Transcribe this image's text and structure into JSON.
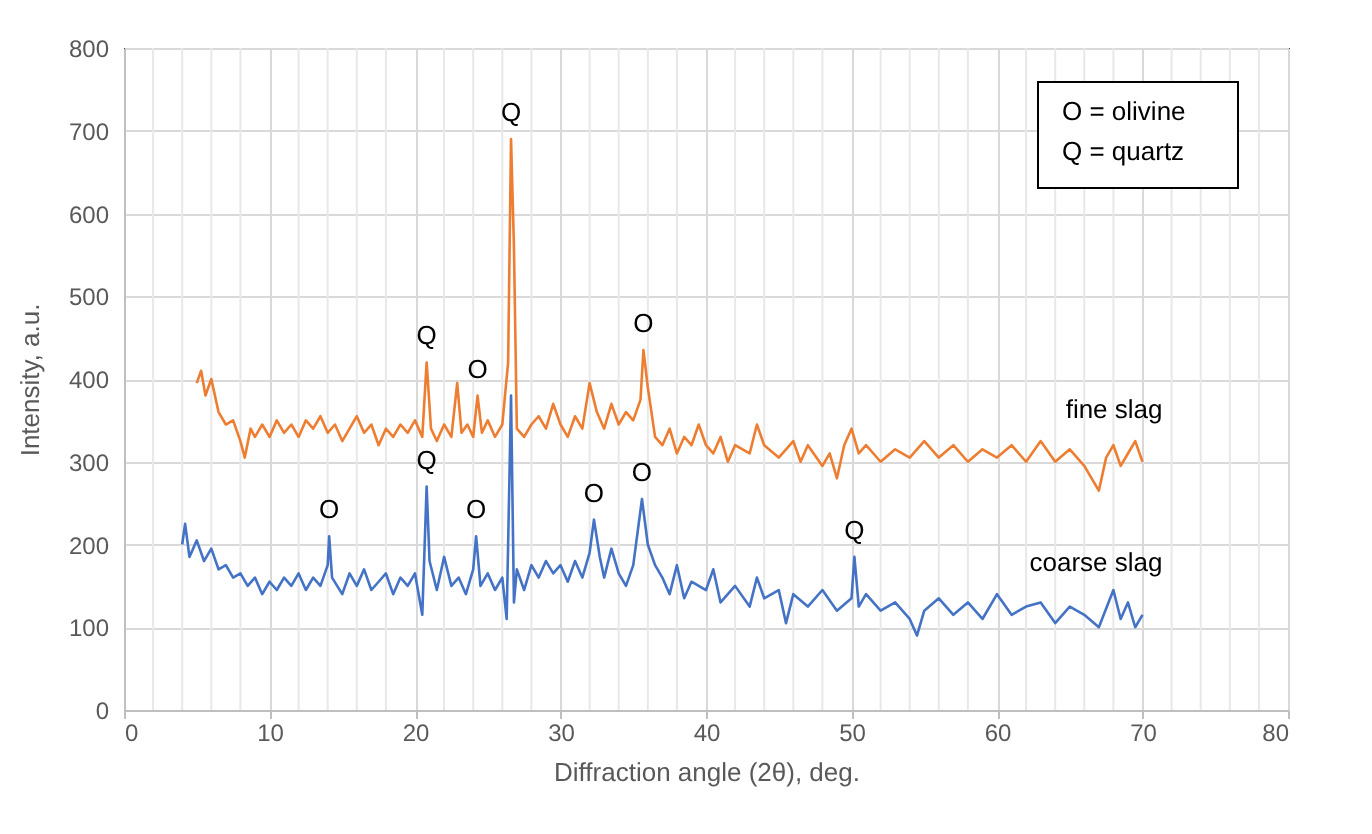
{
  "chart_data": {
    "type": "line",
    "xlabel": "Diffraction angle (2θ), deg.",
    "ylabel": "Intensity, a.u.",
    "xlim": [
      0,
      80
    ],
    "xticks": [
      0,
      10,
      20,
      30,
      40,
      50,
      60,
      70,
      80
    ],
    "ylim": [
      0,
      800
    ],
    "yticks": [
      0,
      100,
      200,
      300,
      400,
      500,
      600,
      700,
      800
    ],
    "grid": true,
    "legend": false,
    "marker": "none",
    "line_style": "solid",
    "annotations": [
      "O = olivine",
      "Q = quartz",
      {
        "text": "Q",
        "x": 20.8,
        "y": 420
      },
      {
        "text": "O",
        "x": 24.3,
        "y": 380
      },
      {
        "text": "Q",
        "x": 26.6,
        "y": 690
      },
      {
        "text": "O",
        "x": 35.7,
        "y": 435
      },
      {
        "text": "O",
        "x": 14.1,
        "y": 210
      },
      {
        "text": "Q",
        "x": 20.8,
        "y": 270
      },
      {
        "text": "O",
        "x": 24.2,
        "y": 210
      },
      {
        "text": "O",
        "x": 32.3,
        "y": 230
      },
      {
        "text": "O",
        "x": 35.6,
        "y": 255
      },
      {
        "text": "Q",
        "x": 50.2,
        "y": 185
      }
    ],
    "series": [
      {
        "name": "fine slag",
        "color": "#ed7d31",
        "x": [
          5,
          5.3,
          5.6,
          6,
          6.5,
          7,
          7.5,
          8,
          8.3,
          8.7,
          9,
          9.5,
          10,
          10.5,
          11,
          11.5,
          12,
          12.5,
          13,
          13.5,
          14,
          14.5,
          15,
          15.5,
          16,
          16.5,
          17,
          17.5,
          18,
          18.5,
          19,
          19.5,
          20,
          20.5,
          20.8,
          21.1,
          21.5,
          22,
          22.5,
          22.9,
          23.2,
          23.6,
          24,
          24.3,
          24.6,
          25,
          25.5,
          26,
          26.4,
          26.6,
          26.8,
          27,
          27.5,
          28,
          28.5,
          29,
          29.5,
          30,
          30.5,
          31,
          31.5,
          32,
          32.5,
          33,
          33.5,
          34,
          34.5,
          35,
          35.5,
          35.7,
          36,
          36.5,
          37,
          37.5,
          38,
          38.5,
          39,
          39.5,
          40,
          40.5,
          41,
          41.5,
          42,
          43,
          43.5,
          44,
          45,
          46,
          46.5,
          47,
          48,
          48.5,
          49,
          49.5,
          50,
          50.5,
          51,
          52,
          53,
          54,
          55,
          56,
          57,
          58,
          59,
          60,
          61,
          62,
          63,
          64,
          65,
          66,
          67,
          67.5,
          68,
          68.5,
          69,
          69.5,
          70
        ],
        "values": [
          395,
          410,
          380,
          400,
          360,
          345,
          350,
          325,
          305,
          340,
          330,
          345,
          330,
          350,
          335,
          345,
          330,
          350,
          340,
          355,
          335,
          345,
          325,
          340,
          355,
          335,
          345,
          320,
          340,
          330,
          345,
          335,
          350,
          330,
          420,
          340,
          325,
          345,
          330,
          395,
          335,
          345,
          330,
          380,
          335,
          350,
          330,
          345,
          420,
          690,
          560,
          340,
          330,
          345,
          355,
          340,
          370,
          345,
          330,
          355,
          340,
          395,
          360,
          340,
          370,
          345,
          360,
          350,
          375,
          435,
          390,
          330,
          320,
          340,
          310,
          330,
          320,
          345,
          320,
          310,
          330,
          300,
          320,
          310,
          345,
          320,
          305,
          325,
          300,
          320,
          295,
          310,
          280,
          320,
          340,
          310,
          320,
          300,
          315,
          305,
          325,
          305,
          320,
          300,
          315,
          305,
          320,
          300,
          325,
          300,
          315,
          295,
          265,
          305,
          320,
          295,
          310,
          325,
          300
        ]
      },
      {
        "name": "coarse slag",
        "color": "#4472c4",
        "x": [
          4,
          4.2,
          4.5,
          5,
          5.5,
          6,
          6.5,
          7,
          7.5,
          8,
          8.5,
          9,
          9.5,
          10,
          10.5,
          11,
          11.5,
          12,
          12.5,
          13,
          13.5,
          14,
          14.1,
          14.3,
          15,
          15.5,
          16,
          16.5,
          17,
          17.5,
          18,
          18.5,
          19,
          19.5,
          20,
          20.5,
          20.8,
          21,
          21.5,
          22,
          22.5,
          23,
          23.5,
          24,
          24.2,
          24.5,
          25,
          25.5,
          26,
          26.3,
          26.6,
          26.8,
          27,
          27.5,
          28,
          28.5,
          29,
          29.5,
          30,
          30.5,
          31,
          31.5,
          32,
          32.3,
          32.7,
          33,
          33.5,
          34,
          34.5,
          35,
          35.6,
          36,
          36.5,
          37,
          37.5,
          38,
          38.5,
          39,
          40,
          40.5,
          41,
          42,
          43,
          43.5,
          44,
          45,
          45.5,
          46,
          47,
          48,
          49,
          50,
          50.2,
          50.5,
          51,
          52,
          53,
          54,
          54.5,
          55,
          56,
          57,
          58,
          59,
          60,
          61,
          62,
          63,
          64,
          65,
          66,
          67,
          68,
          68.5,
          69,
          69.5,
          70
        ],
        "values": [
          200,
          225,
          185,
          205,
          180,
          195,
          170,
          175,
          160,
          165,
          150,
          160,
          140,
          155,
          145,
          160,
          150,
          165,
          145,
          160,
          150,
          175,
          210,
          160,
          140,
          165,
          150,
          170,
          145,
          155,
          165,
          140,
          160,
          150,
          165,
          115,
          270,
          180,
          145,
          185,
          150,
          160,
          140,
          170,
          210,
          150,
          165,
          145,
          160,
          110,
          380,
          130,
          170,
          145,
          175,
          160,
          180,
          165,
          175,
          155,
          180,
          160,
          190,
          230,
          185,
          160,
          195,
          165,
          150,
          175,
          255,
          200,
          175,
          160,
          140,
          175,
          135,
          155,
          145,
          170,
          130,
          150,
          125,
          160,
          135,
          145,
          105,
          140,
          125,
          145,
          120,
          135,
          185,
          125,
          140,
          120,
          130,
          110,
          90,
          120,
          135,
          115,
          130,
          110,
          140,
          115,
          125,
          130,
          105,
          125,
          115,
          100,
          145,
          110,
          130,
          100,
          115
        ]
      }
    ]
  }
}
